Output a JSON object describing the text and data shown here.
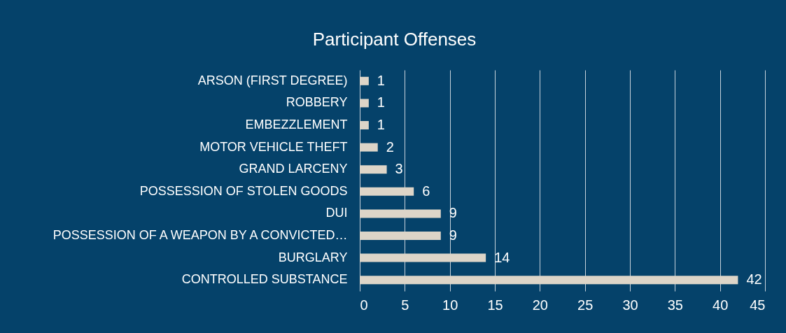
{
  "chart_data": {
    "type": "bar",
    "orientation": "horizontal",
    "title": "Participant Offenses",
    "categories": [
      "ARSON (FIRST DEGREE)",
      "ROBBERY",
      "EMBEZZLEMENT",
      "MOTOR VEHICLE THEFT",
      "GRAND LARCENY",
      "POSSESSION OF STOLEN GOODS",
      "DUI",
      "POSSESSION OF A WEAPON BY A CONVICTED…",
      "BURGLARY",
      "CONTROLLED SUBSTANCE"
    ],
    "values": [
      1,
      1,
      1,
      2,
      3,
      6,
      9,
      9,
      14,
      42
    ],
    "color": "#ddd5c8",
    "xlim": [
      0,
      45
    ],
    "xticks": [
      0,
      5,
      10,
      15,
      20,
      25,
      30,
      35,
      40,
      45
    ],
    "grid": "x",
    "data_labels": true
  }
}
